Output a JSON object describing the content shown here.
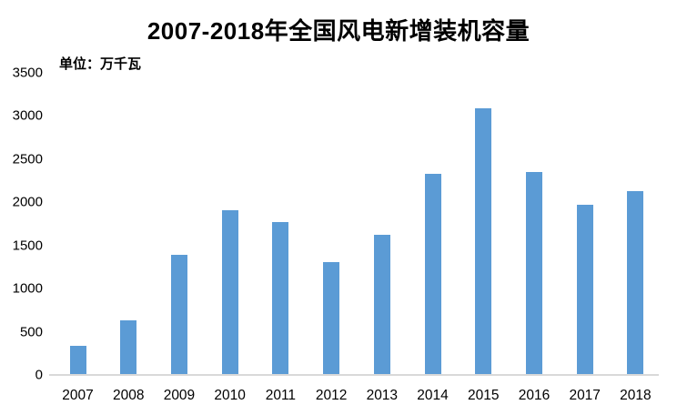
{
  "chart_data": {
    "type": "bar",
    "title": "2007-2018年全国风电新增装机容量",
    "unit_label": "单位：万千瓦",
    "categories": [
      "2007",
      "2008",
      "2009",
      "2010",
      "2011",
      "2012",
      "2013",
      "2014",
      "2015",
      "2016",
      "2017",
      "2018"
    ],
    "values": [
      330,
      625,
      1380,
      1893,
      1763,
      1296,
      1610,
      2320,
      3075,
      2337,
      1966,
      2114
    ],
    "xlabel": "",
    "ylabel": "",
    "ylim": [
      0,
      3500
    ],
    "y_ticks": [
      0,
      500,
      1000,
      1500,
      2000,
      2500,
      3000,
      3500
    ],
    "grid": false,
    "legend": "none",
    "bar_color": "#5B9BD5",
    "axis_line_color": "#D9D9D9",
    "text_color": "#000000",
    "background_color": "#FFFFFF"
  }
}
